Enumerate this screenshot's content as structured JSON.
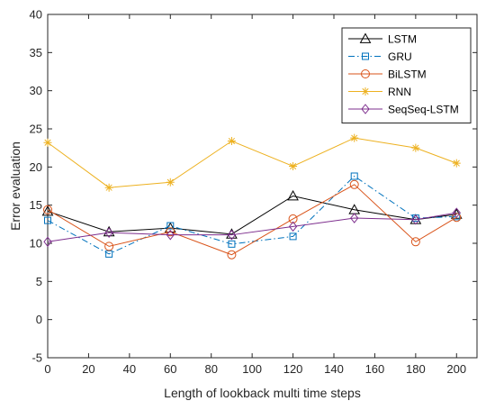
{
  "chart_data": {
    "type": "line",
    "title": "",
    "xlabel": "Length of lookback multi time steps",
    "ylabel": "Error evaluation",
    "xlim": [
      0,
      210
    ],
    "ylim": [
      -5,
      40
    ],
    "xticks": [
      0,
      20,
      40,
      60,
      80,
      100,
      120,
      140,
      160,
      180,
      200
    ],
    "yticks": [
      -5,
      0,
      5,
      10,
      15,
      20,
      25,
      30,
      35,
      40
    ],
    "grid": false,
    "legend_position": "top-right",
    "x": [
      0,
      30,
      60,
      90,
      120,
      150,
      180,
      200
    ],
    "series": [
      {
        "name": "LSTM",
        "color": "#000000",
        "marker": "triangle",
        "dash": "solid",
        "values": [
          14.2,
          11.5,
          12.0,
          11.2,
          16.2,
          14.4,
          13.1,
          13.8
        ]
      },
      {
        "name": "GRU",
        "color": "#0072BD",
        "marker": "square",
        "dash": "dashdot",
        "values": [
          13.0,
          8.6,
          12.3,
          9.9,
          10.9,
          18.8,
          13.3,
          13.5
        ]
      },
      {
        "name": "BiLSTM",
        "color": "#D95319",
        "marker": "circle",
        "dash": "solid",
        "values": [
          14.4,
          9.6,
          11.5,
          8.5,
          13.2,
          17.7,
          10.2,
          13.4
        ]
      },
      {
        "name": "RNN",
        "color": "#EDB120",
        "marker": "asterisk",
        "dash": "solid",
        "values": [
          23.2,
          17.3,
          18.0,
          23.4,
          20.1,
          23.8,
          22.5,
          20.5
        ]
      },
      {
        "name": "SeqSeq-LSTM",
        "color": "#7E2F8E",
        "marker": "diamond",
        "dash": "solid",
        "values": [
          10.2,
          11.4,
          11.1,
          11.1,
          12.2,
          13.3,
          13.1,
          14.0
        ]
      }
    ]
  }
}
